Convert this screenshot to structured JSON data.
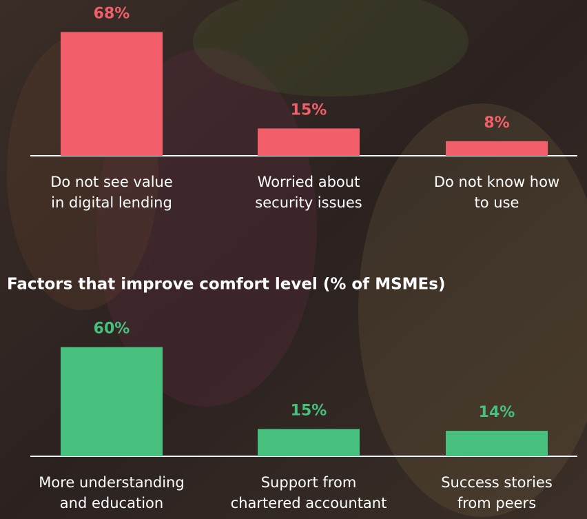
{
  "chart_data": [
    {
      "type": "bar",
      "categories": [
        [
          "Do not see value",
          "in digital lending"
        ],
        [
          "Worried about",
          "security issues"
        ],
        [
          "Do not know how",
          "to use"
        ]
      ],
      "values": [
        68,
        15,
        8
      ],
      "value_labels": [
        "68%",
        "15%",
        "8%"
      ],
      "color": "#f25f6a"
    },
    {
      "type": "bar",
      "title": "Factors that improve comfort level (% of MSMEs)",
      "categories": [
        [
          "More understanding",
          "and education"
        ],
        [
          "Support from",
          "chartered accountant"
        ],
        [
          "Success stories",
          "from peers"
        ]
      ],
      "values": [
        60,
        15,
        14
      ],
      "value_labels": [
        "60%",
        "15%",
        "14%"
      ],
      "color": "#47c07e"
    }
  ]
}
